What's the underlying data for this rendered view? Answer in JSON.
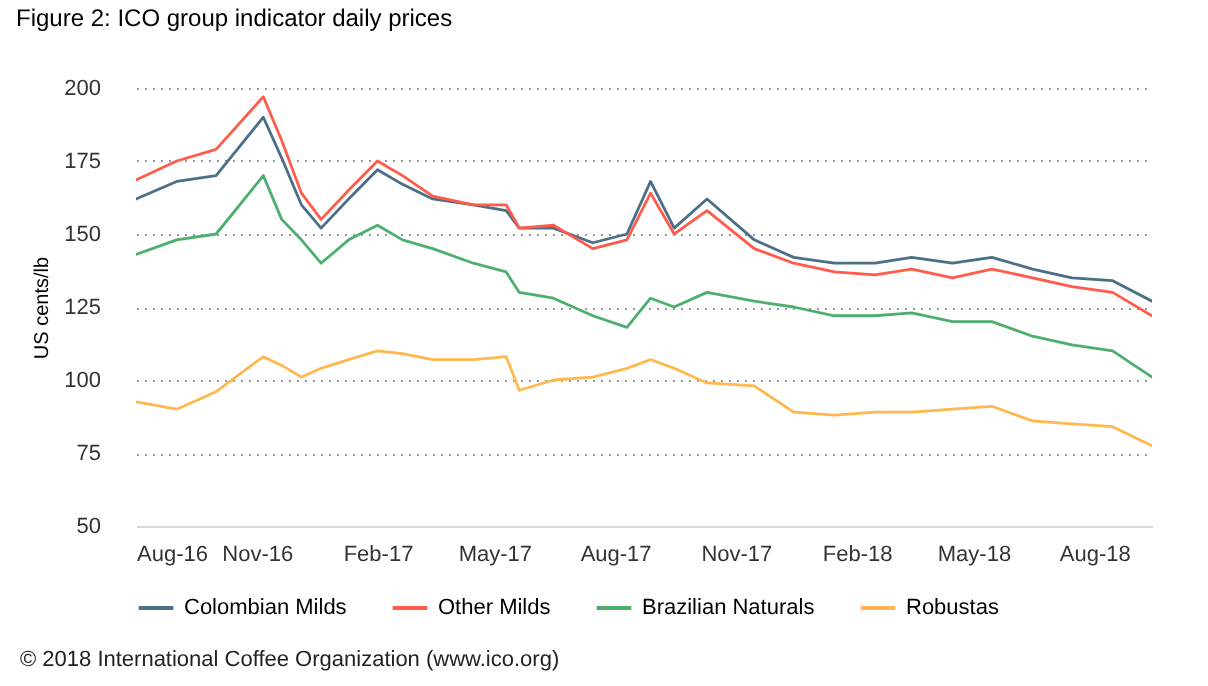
{
  "chart_data": {
    "type": "line",
    "title": "Figure 2: ICO group indicator daily prices",
    "ylabel": "US cents/lb",
    "x": [
      "2016-08-01",
      "2016-09-01",
      "2016-10-01",
      "2016-11-06",
      "2016-11-20",
      "2016-12-05",
      "2016-12-20",
      "2017-01-10",
      "2017-02-01",
      "2017-02-20",
      "2017-03-15",
      "2017-04-15",
      "2017-05-10",
      "2017-05-20",
      "2017-06-15",
      "2017-07-15",
      "2017-08-10",
      "2017-08-28",
      "2017-09-15",
      "2017-10-10",
      "2017-11-15",
      "2017-12-15",
      "2018-01-15",
      "2018-02-15",
      "2018-03-15",
      "2018-04-15",
      "2018-05-15",
      "2018-06-15",
      "2018-07-15",
      "2018-08-15",
      "2018-09-14"
    ],
    "series": [
      {
        "name": "Colombian Milds",
        "color": "#4a6f87",
        "values": [
          162,
          168,
          170,
          190,
          176,
          160,
          152,
          162,
          172,
          167,
          162,
          160,
          158,
          152,
          152,
          147,
          150,
          168,
          152,
          162,
          148,
          142,
          140,
          140,
          142,
          140,
          142,
          138,
          135,
          134,
          127
        ]
      },
      {
        "name": "Other Milds",
        "color": "#ff5b4a",
        "values": [
          168.5,
          175,
          179,
          197,
          182,
          164,
          155,
          165,
          175,
          170,
          163,
          160,
          160,
          152,
          153,
          145,
          148,
          164,
          150,
          158,
          145,
          140,
          137,
          136,
          138,
          135,
          138,
          135,
          132,
          130,
          122
        ]
      },
      {
        "name": "Brazilian Naturals",
        "color": "#4caf6e",
        "values": [
          143,
          148,
          150,
          170,
          155,
          148,
          140,
          148,
          153,
          148,
          145,
          140,
          137,
          130,
          128,
          122,
          118,
          128,
          125,
          130,
          127,
          125,
          122,
          122,
          123,
          120,
          120,
          115,
          112,
          110,
          101
        ]
      },
      {
        "name": "Robustas",
        "color": "#ffb84d",
        "values": [
          92.5,
          90,
          96,
          108,
          105,
          101,
          104,
          107,
          110,
          109,
          107,
          107,
          108,
          96.5,
          100,
          101,
          104,
          107,
          104,
          99,
          98,
          89,
          88,
          89,
          89,
          90,
          91,
          86,
          85,
          84,
          77.5
        ]
      }
    ],
    "xlim": [
      "2016-08-01",
      "2018-09-14"
    ],
    "xticks": [
      {
        "value": "2016-08-01",
        "label": "Aug-16"
      },
      {
        "value": "2016-11-01",
        "label": "Nov-16"
      },
      {
        "value": "2017-02-01",
        "label": "Feb-17"
      },
      {
        "value": "2017-05-01",
        "label": "May-17"
      },
      {
        "value": "2017-08-01",
        "label": "Aug-17"
      },
      {
        "value": "2017-11-01",
        "label": "Nov-17"
      },
      {
        "value": "2018-02-01",
        "label": "Feb-18"
      },
      {
        "value": "2018-05-01",
        "label": "May-18"
      },
      {
        "value": "2018-08-01",
        "label": "Aug-18"
      }
    ],
    "ylim": [
      50,
      200
    ],
    "yticks": [
      50,
      75,
      100,
      125,
      150,
      175,
      200
    ],
    "grid": "y",
    "legend": "bottom",
    "marker": "none",
    "line_style": "solid",
    "annotations": [
      "© 2018 International Coffee Organization (www.ico.org)"
    ]
  }
}
